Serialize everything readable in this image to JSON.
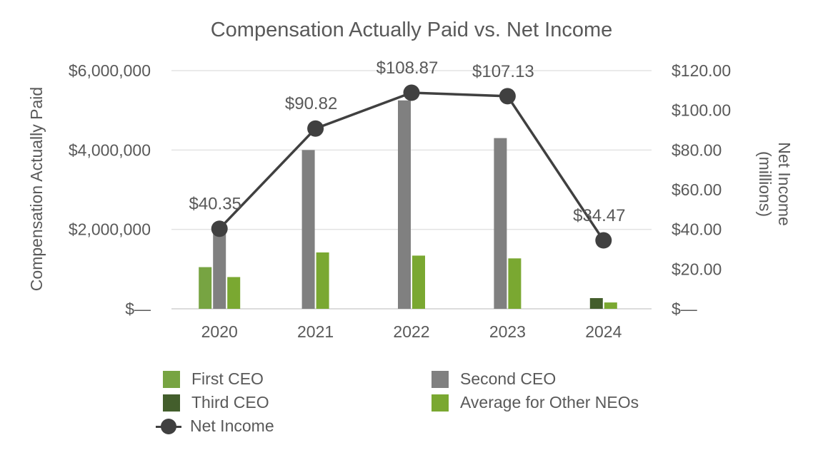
{
  "chart_data": {
    "type": "bar",
    "title": "Compensation Actually Paid vs. Net Income",
    "categories": [
      "2020",
      "2021",
      "2022",
      "2023",
      "2024"
    ],
    "ylabel": "Compensation Actually Paid",
    "y2label_line1": "Net Income",
    "y2label_line2": "(millions)",
    "ylim": [
      0,
      6000000
    ],
    "y2lim": [
      0,
      120
    ],
    "yticks": [
      "$—",
      "$2,000,000",
      "$4,000,000",
      "$6,000,000"
    ],
    "y2ticks": [
      "$—",
      "$20.00",
      "$40.00",
      "$60.00",
      "$80.00",
      "$100.00",
      "$120.00"
    ],
    "grid": true,
    "legend_position": "bottom",
    "series": [
      {
        "name": "First CEO",
        "type": "bar",
        "color": "#77a442",
        "values": [
          1050000,
          null,
          null,
          null,
          null
        ]
      },
      {
        "name": "Second CEO",
        "type": "bar",
        "color": "#808080",
        "values": [
          2000000,
          4000000,
          5250000,
          4300000,
          null
        ]
      },
      {
        "name": "Third CEO",
        "type": "bar",
        "color": "#435e2c",
        "values": [
          null,
          null,
          null,
          null,
          270000
        ]
      },
      {
        "name": "Average for Other NEOs",
        "type": "bar",
        "color": "#7aa831",
        "values": [
          800000,
          1420000,
          1340000,
          1270000,
          160000
        ]
      },
      {
        "name": "Net Income",
        "type": "line",
        "axis": "right",
        "color": "#404040",
        "values": [
          40.35,
          90.82,
          108.87,
          107.13,
          34.47
        ]
      }
    ],
    "data_labels": [
      "$40.35",
      "$90.82",
      "$108.87",
      "$107.13",
      "$34.47"
    ]
  }
}
